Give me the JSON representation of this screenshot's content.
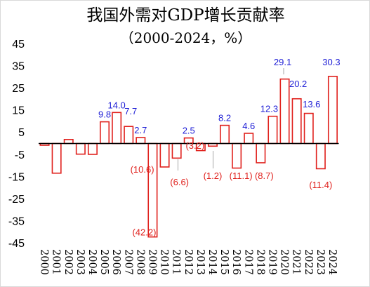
{
  "chart_data": {
    "type": "bar",
    "title": "我国外需对GDP增长贡献率",
    "subtitle": "（2000-2024，%）",
    "xlabel": "",
    "ylabel": "",
    "ylim": [
      -45,
      45
    ],
    "yticks": [
      "45",
      "35",
      "25",
      "15",
      "5",
      "-5",
      "-15",
      "-25",
      "-35",
      "-45"
    ],
    "ytick_values": [
      45,
      35,
      25,
      15,
      5,
      -5,
      -15,
      -25,
      -35,
      -45
    ],
    "categories": [
      "2000",
      "2001",
      "2002",
      "2003",
      "2004",
      "2005",
      "2006",
      "2007",
      "2008",
      "2009",
      "2010",
      "2011",
      "2012",
      "2013",
      "2014",
      "2015",
      "2016",
      "2017",
      "2018",
      "2019",
      "2020",
      "2021",
      "2022",
      "2023",
      "2024"
    ],
    "values": [
      -0.8,
      -13.4,
      1.8,
      -4.8,
      -4.9,
      9.8,
      14.0,
      7.7,
      2.7,
      -42.2,
      -10.6,
      -6.6,
      2.5,
      -3.2,
      -1.2,
      8.2,
      -11.1,
      4.6,
      -8.7,
      12.3,
      29.1,
      20.2,
      13.6,
      -11.4,
      30.3
    ],
    "data_labels": [
      {
        "year": "2005",
        "text": "9.8"
      },
      {
        "year": "2006",
        "text": "14.0"
      },
      {
        "year": "2007",
        "text": "7.7"
      },
      {
        "year": "2008",
        "text": "2.7"
      },
      {
        "year": "2009",
        "text": "(42.2)"
      },
      {
        "year": "2010",
        "text": "(10.6)"
      },
      {
        "year": "2011",
        "text": "(6.6)"
      },
      {
        "year": "2012",
        "text": "2.5"
      },
      {
        "year": "2013",
        "text": "(3.2)"
      },
      {
        "year": "2014",
        "text": "(1.2)"
      },
      {
        "year": "2015",
        "text": "8.2"
      },
      {
        "year": "2016",
        "text": "(11.1)"
      },
      {
        "year": "2017",
        "text": "4.6"
      },
      {
        "year": "2018",
        "text": "(8.7)"
      },
      {
        "year": "2019",
        "text": "12.3"
      },
      {
        "year": "2020",
        "text": "29.1"
      },
      {
        "year": "2021",
        "text": "20.2"
      },
      {
        "year": "2022",
        "text": "13.6"
      },
      {
        "year": "2023",
        "text": "(11.4)"
      },
      {
        "year": "2024",
        "text": "30.3"
      }
    ],
    "grid": false,
    "legend": "none",
    "colors": {
      "bar_stroke": "#e0201c",
      "bar_fill": "#ffffff",
      "positive_label": "#1f1fd6",
      "negative_label": "#e0201c",
      "axis": "#000000",
      "leader_line": "#a6a6a6"
    }
  }
}
